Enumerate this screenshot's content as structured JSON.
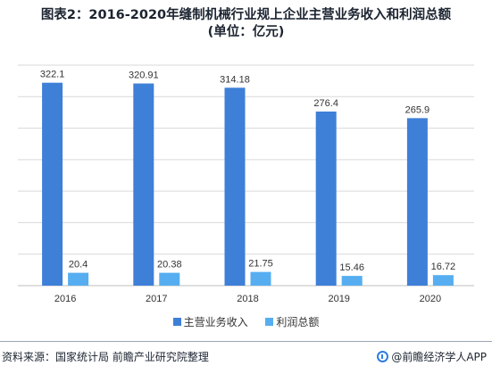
{
  "title": {
    "line1": "图表2：2016-2020年缝制机械行业规上企业主营业务收入和利润总额",
    "line2": "(单位：亿元)"
  },
  "colors": {
    "revenue": "#3e7fd8",
    "profit": "#56aef0",
    "grid": "#d9d9d9",
    "axis": "#bfbfbf"
  },
  "chart_data": {
    "type": "bar",
    "categories": [
      "2016",
      "2017",
      "2018",
      "2019",
      "2020"
    ],
    "series": [
      {
        "name": "主营业务收入",
        "values": [
          322.1,
          320.91,
          314.18,
          276.4,
          265.9
        ],
        "labels": [
          "322.1",
          "320.91",
          "314.18",
          "276.4",
          "265.9"
        ]
      },
      {
        "name": "利润总额",
        "values": [
          20.4,
          20.38,
          21.75,
          15.46,
          16.72
        ],
        "labels": [
          "20.4",
          "20.38",
          "21.75",
          "15.46",
          "16.72"
        ]
      }
    ],
    "ylim": [
      0,
      350
    ],
    "grid": true,
    "legend": "bottom"
  },
  "footer": {
    "source": "资料来源：国家统计局 前瞻产业研究院整理",
    "brand": "@前瞻经济学人APP"
  }
}
